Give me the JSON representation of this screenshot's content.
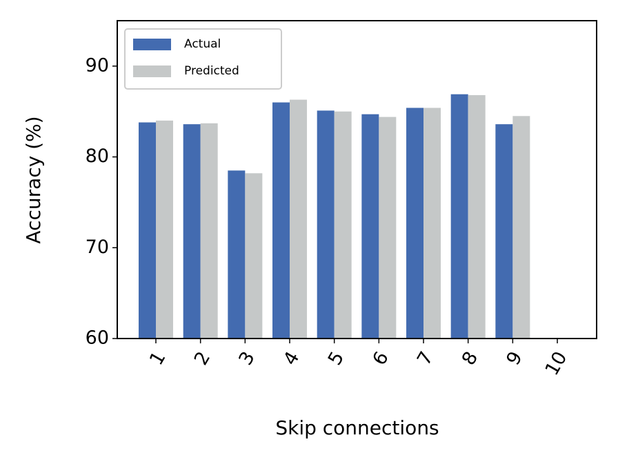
{
  "chart_data": {
    "type": "bar",
    "x_label": "Skip connections",
    "y_label": "Accuracy (%)",
    "categories": [
      "1",
      "2",
      "3",
      "4",
      "5",
      "6",
      "7",
      "8",
      "9",
      "10"
    ],
    "series": [
      {
        "name": "Actual",
        "color": "#436bb0",
        "values": [
          83.8,
          83.6,
          78.5,
          86.0,
          85.1,
          84.7,
          85.4,
          86.9,
          83.6,
          null
        ]
      },
      {
        "name": "Predicted",
        "color": "#c5c8c8",
        "values": [
          84.0,
          83.7,
          78.2,
          86.3,
          85.0,
          84.4,
          85.4,
          86.8,
          84.5,
          null
        ]
      }
    ],
    "ylim": [
      60,
      95
    ],
    "yticks": [
      60,
      70,
      80,
      90
    ],
    "legend": "upper left",
    "grid": false
  }
}
